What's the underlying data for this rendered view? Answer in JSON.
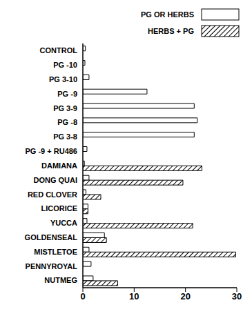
{
  "chart_data": {
    "type": "bar",
    "orientation": "horizontal",
    "legend": "top-right",
    "grid": false,
    "categories": [
      "CONTROL",
      "PG -10",
      "PG 3-10",
      "PG -9",
      "PG 3-9",
      "PG -8",
      "PG 3-8",
      "PG -9 + RU486",
      "DAMIANA",
      "DONG QUAI",
      "RED CLOVER",
      "LICORICE",
      "YUCCA",
      "GOLDENSEAL",
      "MISTLETOE",
      "PENNYROYAL",
      "NUTMEG"
    ],
    "series": [
      {
        "name": "PG OR HERBS",
        "color": "#ffffff",
        "values": [
          0.5,
          0.4,
          1.2,
          12.5,
          21.7,
          22.3,
          21.7,
          0.8,
          0.3,
          1.2,
          0.6,
          1.0,
          0.8,
          4.2,
          1.2,
          1.6,
          2.0
        ]
      },
      {
        "name": "HERBS + PG",
        "color": "#000000",
        "values": [
          null,
          null,
          null,
          null,
          null,
          null,
          null,
          null,
          23.2,
          19.5,
          3.5,
          1.0,
          21.4,
          4.6,
          29.8,
          null,
          6.8
        ]
      }
    ],
    "xlim": [
      0,
      30
    ],
    "xticks": [
      0,
      10,
      20,
      30
    ]
  }
}
